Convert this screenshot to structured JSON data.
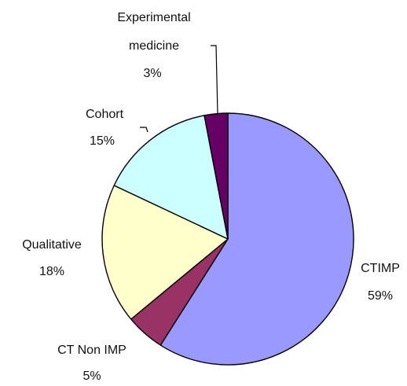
{
  "chart_data": {
    "type": "pie",
    "title": "",
    "slices": [
      {
        "name": "CTIMP",
        "percent_label": "59%",
        "value": 59,
        "color": "#9999ff"
      },
      {
        "name": "CT Non IMP",
        "percent_label": "5%",
        "value": 5,
        "color": "#993366"
      },
      {
        "name": "Qualitative",
        "percent_label": "18%",
        "value": 18,
        "color": "#ffffcc"
      },
      {
        "name": "Cohort",
        "percent_label": "15%",
        "value": 15,
        "color": "#ccffff"
      },
      {
        "name": "Experimental medicine",
        "name_lines": [
          "Experimental",
          "medicine"
        ],
        "percent_label": "3%",
        "value": 3,
        "color": "#660066"
      }
    ],
    "legend": "none",
    "data_labels": "category name and percentage, outside slices"
  }
}
